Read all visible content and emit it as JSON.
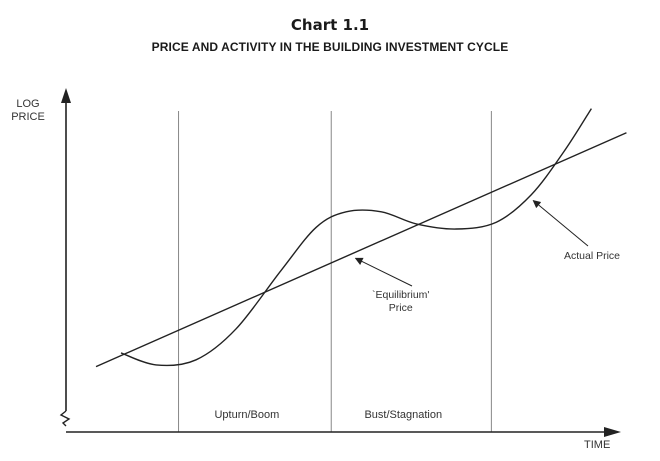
{
  "chart_data": {
    "type": "line",
    "chart_number": "Chart 1.1",
    "title": "PRICE AND  ACTIVITY IN THE BUILDING INVESTMENT CYCLE",
    "ylabel": [
      "LOG",
      "PRICE"
    ],
    "xlabel": "TIME",
    "grid": false,
    "xlim": [
      0,
      10
    ],
    "ylim": [
      0,
      10
    ],
    "phases": [
      {
        "label": "Upturn/Boom",
        "x_start": 2.25,
        "x_end": 5.3
      },
      {
        "label": "Bust/Stagnation",
        "x_start": 5.3,
        "x_end": 8.5
      }
    ],
    "series": [
      {
        "name": "'Equilibrium' Price",
        "x": [
          0.6,
          11.2
        ],
        "y": [
          1.9,
          8.7
        ]
      },
      {
        "name": "Actual Price",
        "x": [
          1.1,
          1.8,
          2.6,
          3.4,
          4.3,
          5.0,
          5.6,
          6.3,
          7.0,
          7.8,
          8.6,
          9.3,
          9.95,
          10.5
        ],
        "y": [
          2.3,
          1.95,
          2.1,
          3.0,
          4.7,
          5.95,
          6.4,
          6.4,
          6.05,
          5.9,
          6.1,
          6.9,
          8.15,
          9.4
        ]
      }
    ],
    "annotations": [
      {
        "text": [
          "`Equilibrium'",
          "Price"
        ],
        "target_series": "'Equilibrium' Price"
      },
      {
        "text": [
          "Actual Price"
        ],
        "target_series": "Actual Price"
      }
    ]
  }
}
